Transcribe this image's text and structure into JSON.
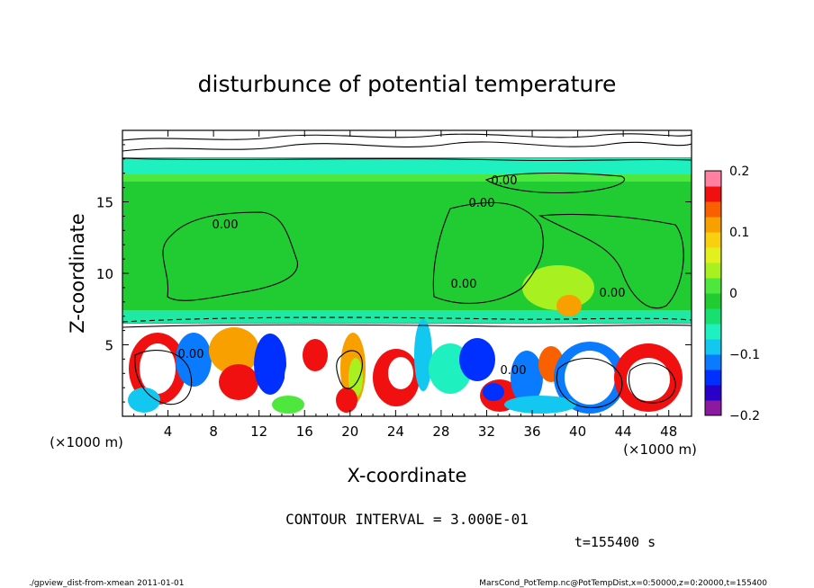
{
  "chart_data": {
    "type": "heatmap",
    "title": "disturbunce of potential temperature",
    "xlabel": "X-coordinate",
    "ylabel": "Z-coordinate",
    "x_unit": "(×1000 m)",
    "y_unit": "(×1000 m)",
    "xlim": [
      0,
      50
    ],
    "ylim": [
      0,
      20
    ],
    "x_ticks": [
      "4",
      "8",
      "12",
      "16",
      "20",
      "24",
      "28",
      "32",
      "36",
      "40",
      "44",
      "48"
    ],
    "y_ticks": [
      "5",
      "10",
      "15"
    ],
    "colorbar": {
      "range": [
        -0.2,
        0.2
      ],
      "tick_labels": [
        "0.2",
        "0.1",
        "0",
        "−0.1",
        "−0.2"
      ],
      "colors": [
        "#8c1aa0",
        "#2a00c8",
        "#0030ff",
        "#0a7aff",
        "#13c8f0",
        "#1ff0c0",
        "#18e070",
        "#21cc33",
        "#4ee73d",
        "#a8f020",
        "#e2f020",
        "#f8d010",
        "#f8a000",
        "#f86000",
        "#f01010",
        "#ff80a0"
      ]
    },
    "contour_labels": [
      "0.00",
      "0.00",
      "0.00",
      "0.00",
      "0.00",
      "0.00",
      "0.00"
    ],
    "contour_interval_text": "CONTOUR INTERVAL = 3.000E-01",
    "time_text": "t=155400 s"
  },
  "footer": {
    "left": "./gpview_dist-from-xmean  2011-01-01",
    "right": "MarsCond_PotTemp.nc@PotTempDist,x=0:50000,z=0:20000,t=155400"
  }
}
